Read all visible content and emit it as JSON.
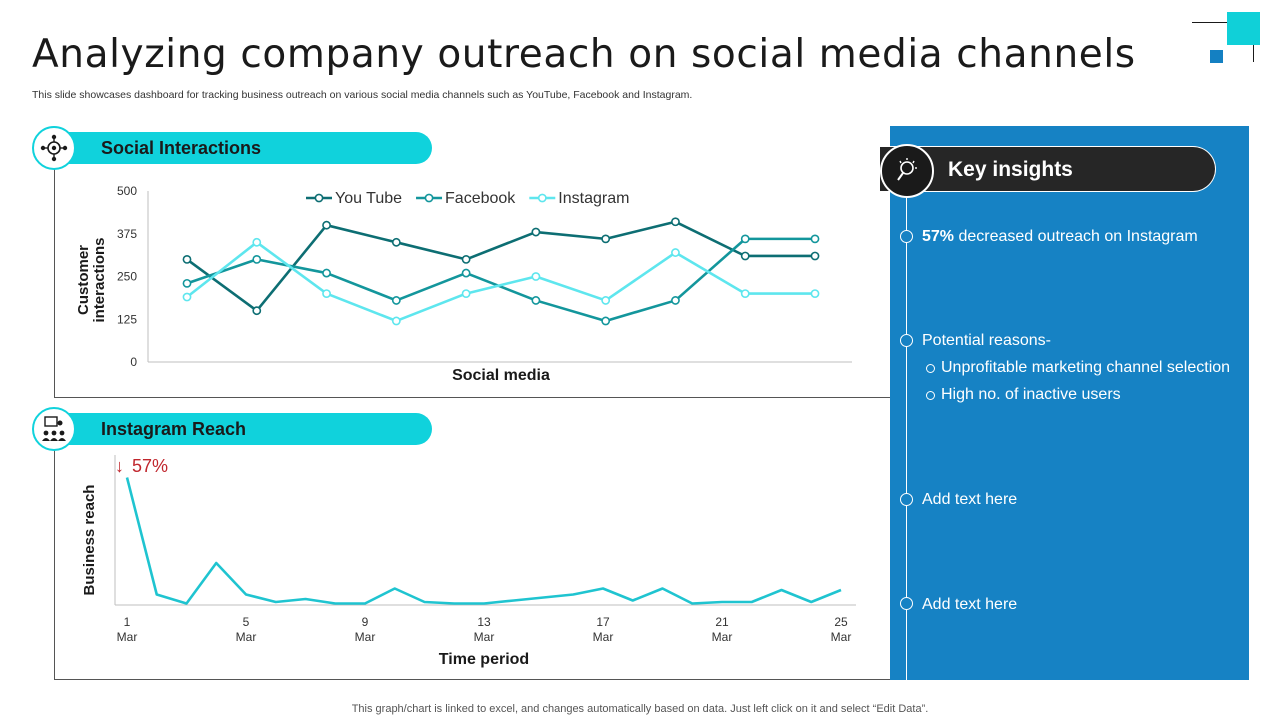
{
  "page": {
    "title": "Analyzing company outreach on social media channels",
    "subtitle": "This slide showcases dashboard for tracking business outreach on various social media channels such as YouTube, Facebook and Instagram.",
    "footnote": "This graph/chart is linked to excel,  and changes automatically based on data. Just left click on it and select “Edit Data”.",
    "colors": {
      "accent_cyan": "#10d2dc",
      "panel_blue": "#1682c4",
      "dark": "#262626"
    }
  },
  "sections": {
    "social_interactions": {
      "label": "Social Interactions",
      "icon": "network-target-icon"
    },
    "instagram_reach": {
      "label": "Instagram Reach",
      "icon": "presentation-audience-icon"
    }
  },
  "insights": {
    "header": "Key insights",
    "icon": "lightbulb-search-icon",
    "item1_bold": "57%",
    "item1_rest": " decreased outreach on Instagram",
    "item2": "Potential reasons-",
    "item2_sub1": "Unprofitable marketing channel selection",
    "item2_sub2": "High no. of inactive users",
    "item3": "Add text here",
    "item4": "Add text here"
  },
  "chart_data": [
    {
      "type": "line",
      "xlabel": "Social media",
      "ylabel": "Customer interactions",
      "ylim": [
        0,
        500
      ],
      "yticks": [
        0,
        125,
        250,
        375,
        500
      ],
      "grid": false,
      "legend": "top-center",
      "x": [
        1,
        2,
        3,
        4,
        5,
        6,
        7,
        8,
        9,
        10
      ],
      "series": [
        {
          "name": "You Tube",
          "color": "#0d6e73",
          "values": [
            300,
            150,
            400,
            350,
            300,
            380,
            360,
            410,
            310,
            310
          ]
        },
        {
          "name": "Facebook",
          "color": "#13969c",
          "values": [
            230,
            300,
            260,
            180,
            260,
            180,
            120,
            180,
            360,
            360
          ]
        },
        {
          "name": "Instagram",
          "color": "#5ee6ee",
          "values": [
            190,
            350,
            200,
            120,
            200,
            250,
            180,
            320,
            200,
            200
          ]
        }
      ]
    },
    {
      "type": "line",
      "xlabel": "Time period",
      "ylabel": "Business reach",
      "annotation": "57%",
      "annotation_icon": "arrow-down-icon",
      "grid": false,
      "ylim": [
        0,
        100
      ],
      "x": [
        1,
        2,
        3,
        4,
        5,
        6,
        7,
        8,
        9,
        10,
        11,
        12,
        13,
        14,
        15,
        16,
        17,
        18,
        19,
        20,
        21,
        22,
        23,
        24,
        25
      ],
      "xticks": [
        "1",
        "5",
        "9",
        "13",
        "17",
        "21",
        "25"
      ],
      "xtick_sub": "Mar",
      "values": [
        85,
        7,
        1,
        28,
        7,
        2,
        4,
        1,
        1,
        11,
        2,
        1,
        1,
        3,
        5,
        7,
        11,
        3,
        11,
        1,
        2,
        2,
        10,
        2,
        10
      ],
      "color": "#1fc4d0"
    }
  ]
}
